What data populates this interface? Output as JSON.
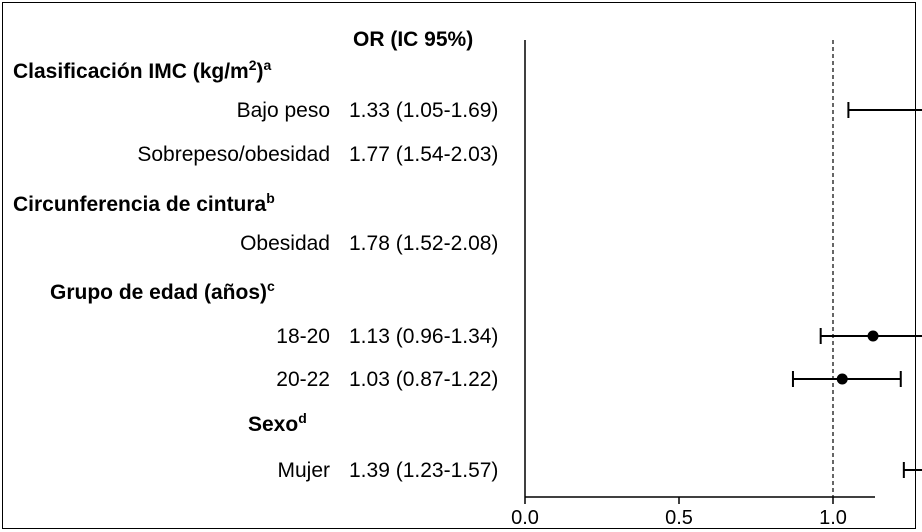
{
  "chart_data": {
    "type": "forest",
    "column_header": "OR (IC 95%)",
    "reference_line": 1.0,
    "xlim": [
      0.0,
      2.3
    ],
    "xticks": [
      "0.0",
      "0.5",
      "1.0",
      "1.5",
      "2.0"
    ],
    "rows": [
      {
        "kind": "header",
        "label": "Clasificación IMC (kg/m",
        "sup_mid": "2",
        "label_end": ")",
        "sup": "a"
      },
      {
        "kind": "item",
        "label": "Bajo peso",
        "or_text": "1.33 (1.05-1.69)",
        "or": 1.33,
        "lo": 1.05,
        "hi": 1.69
      },
      {
        "kind": "item",
        "label": "Sobrepeso/obesidad",
        "or_text": "1.77 (1.54-2.03)",
        "or": 1.77,
        "lo": 1.54,
        "hi": 2.03
      },
      {
        "kind": "header",
        "label": "Circunferencia de cintura",
        "sup": "b"
      },
      {
        "kind": "item",
        "label": "Obesidad",
        "or_text": "1.78 (1.52-2.08)",
        "or": 1.78,
        "lo": 1.52,
        "hi": 2.08
      },
      {
        "kind": "header",
        "label": "Grupo de edad (años)",
        "sup": "c"
      },
      {
        "kind": "item",
        "label": "18-20",
        "or_text": "1.13 (0.96-1.34)",
        "or": 1.13,
        "lo": 0.96,
        "hi": 1.34
      },
      {
        "kind": "item",
        "label": "20-22",
        "or_text": "1.03 (0.87-1.22)",
        "or": 1.03,
        "lo": 0.87,
        "hi": 1.22
      },
      {
        "kind": "header",
        "label": "Sexo",
        "sup": "d"
      },
      {
        "kind": "item",
        "label": "Mujer",
        "or_text": "1.39 (1.23-1.57)",
        "or": 1.39,
        "lo": 1.23,
        "hi": 1.57
      }
    ]
  }
}
